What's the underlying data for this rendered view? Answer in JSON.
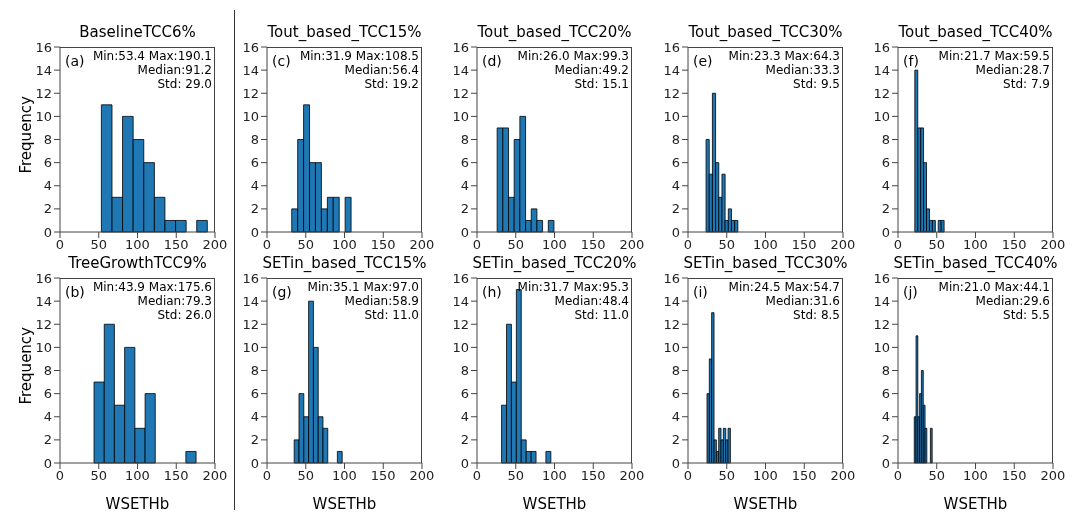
{
  "chart_data": [
    {
      "type": "histogram",
      "title": "BaselineTCC6%",
      "ylabel": "Frequency",
      "bins": [
        53.4,
        67.1,
        80.7,
        94.4,
        108.1,
        121.8,
        135.4,
        149.1,
        162.8,
        176.4,
        190.1
      ],
      "values": [
        11,
        3,
        10,
        8,
        6,
        3,
        1,
        1,
        0,
        1
      ],
      "color": "#1f77b4",
      "xlim": [
        0,
        200
      ],
      "xticks": [
        0,
        50,
        100,
        150,
        200
      ],
      "ylim": [
        0,
        16
      ],
      "yticks": [
        0,
        2,
        4,
        6,
        8,
        10,
        12,
        14,
        16
      ],
      "annotations": [
        "(a)",
        "Min:53.4 Max:190.1",
        "Median:91.2",
        "Std: 29.0"
      ]
    },
    {
      "type": "histogram",
      "title": "Tout_based_TCC15%",
      "bins": [
        31.9,
        39.6,
        47.2,
        54.9,
        62.5,
        70.2,
        77.9,
        85.5,
        93.2,
        100.8,
        108.5
      ],
      "values": [
        2,
        8,
        11,
        6,
        6,
        2,
        3,
        3,
        0,
        3
      ],
      "color": "#1f77b4",
      "xlim": [
        0,
        200
      ],
      "xticks": [
        0,
        50,
        100,
        150,
        200
      ],
      "ylim": [
        0,
        16
      ],
      "yticks": [
        0,
        2,
        4,
        6,
        8,
        10,
        12,
        14,
        16
      ],
      "annotations": [
        "(c)",
        "Min:31.9 Max:108.5",
        "Median:56.4",
        "Std: 19.2"
      ]
    },
    {
      "type": "histogram",
      "title": "Tout_based_TCC20%",
      "bins": [
        26.0,
        33.3,
        40.7,
        48.0,
        55.3,
        62.7,
        70.0,
        77.3,
        84.6,
        92.0,
        99.3
      ],
      "values": [
        9,
        9,
        3,
        8,
        10,
        1,
        2,
        1,
        0,
        1
      ],
      "color": "#1f77b4",
      "xlim": [
        0,
        200
      ],
      "xticks": [
        0,
        50,
        100,
        150,
        200
      ],
      "ylim": [
        0,
        16
      ],
      "yticks": [
        0,
        2,
        4,
        6,
        8,
        10,
        12,
        14,
        16
      ],
      "annotations": [
        "(d)",
        "Min:26.0 Max:99.3",
        "Median:49.2",
        "Std: 15.1"
      ]
    },
    {
      "type": "histogram",
      "title": "Tout_based_TCC30%",
      "bins": [
        23.3,
        27.4,
        31.5,
        35.6,
        39.7,
        43.8,
        47.9,
        52.0,
        56.1,
        60.2,
        64.3
      ],
      "values": [
        8,
        5,
        12,
        6,
        3,
        5,
        1,
        2,
        1,
        1
      ],
      "color": "#1f77b4",
      "xlim": [
        0,
        200
      ],
      "xticks": [
        0,
        50,
        100,
        150,
        200
      ],
      "ylim": [
        0,
        16
      ],
      "yticks": [
        0,
        2,
        4,
        6,
        8,
        10,
        12,
        14,
        16
      ],
      "annotations": [
        "(e)",
        "Min:23.3 Max:64.3",
        "Median:33.3",
        "Std: 9.5"
      ]
    },
    {
      "type": "histogram",
      "title": "Tout_based_TCC40%",
      "bins": [
        21.7,
        25.5,
        29.3,
        33.0,
        36.8,
        40.6,
        44.4,
        48.2,
        51.9,
        55.7,
        59.5
      ],
      "values": [
        14,
        9,
        9,
        6,
        2,
        1,
        1,
        0,
        1,
        1
      ],
      "color": "#1f77b4",
      "xlim": [
        0,
        200
      ],
      "xticks": [
        0,
        50,
        100,
        150,
        200
      ],
      "ylim": [
        0,
        16
      ],
      "yticks": [
        0,
        2,
        4,
        6,
        8,
        10,
        12,
        14,
        16
      ],
      "annotations": [
        "(f)",
        "Min:21.7 Max:59.5",
        "Median:28.7",
        "Std: 7.9"
      ]
    },
    {
      "type": "histogram",
      "title": "TreeGrowthTCC9%",
      "xlabel": "WSETHb",
      "ylabel": "Frequency",
      "bins": [
        43.9,
        57.1,
        70.2,
        83.4,
        96.6,
        109.8,
        122.9,
        136.1,
        149.3,
        162.4,
        175.6
      ],
      "values": [
        7,
        12,
        5,
        10,
        3,
        6,
        0,
        0,
        0,
        1
      ],
      "color": "#1f77b4",
      "xlim": [
        0,
        200
      ],
      "xticks": [
        0,
        50,
        100,
        150,
        200
      ],
      "ylim": [
        0,
        16
      ],
      "yticks": [
        0,
        2,
        4,
        6,
        8,
        10,
        12,
        14,
        16
      ],
      "annotations": [
        "(b)",
        "Min:43.9 Max:175.6",
        "Median:79.3",
        "Std: 26.0"
      ]
    },
    {
      "type": "histogram",
      "title": "SETin_based_TCC15%",
      "xlabel": "WSETHb",
      "bins": [
        35.1,
        41.3,
        47.5,
        53.7,
        59.9,
        66.1,
        72.2,
        78.4,
        84.6,
        90.8,
        97.0
      ],
      "values": [
        2,
        6,
        4,
        14,
        10,
        4,
        3,
        0,
        0,
        1
      ],
      "color": "#1f77b4",
      "xlim": [
        0,
        200
      ],
      "xticks": [
        0,
        50,
        100,
        150,
        200
      ],
      "ylim": [
        0,
        16
      ],
      "yticks": [
        0,
        2,
        4,
        6,
        8,
        10,
        12,
        14,
        16
      ],
      "annotations": [
        "(g)",
        "Min:35.1 Max:97.0",
        "Median:58.9",
        "Std: 11.0"
      ]
    },
    {
      "type": "histogram",
      "title": "SETin_based_TCC20%",
      "xlabel": "WSETHb",
      "bins": [
        31.7,
        38.1,
        44.4,
        50.8,
        57.1,
        63.5,
        69.9,
        76.2,
        82.6,
        88.9,
        95.3
      ],
      "values": [
        5,
        12,
        7,
        15,
        2,
        1,
        1,
        0,
        0,
        1
      ],
      "color": "#1f77b4",
      "xlim": [
        0,
        200
      ],
      "xticks": [
        0,
        50,
        100,
        150,
        200
      ],
      "ylim": [
        0,
        16
      ],
      "yticks": [
        0,
        2,
        4,
        6,
        8,
        10,
        12,
        14,
        16
      ],
      "annotations": [
        "(h)",
        "Min:31.7 Max:95.3",
        "Median:48.4",
        "Std: 11.0"
      ]
    },
    {
      "type": "histogram",
      "title": "SETin_based_TCC30%",
      "xlabel": "WSETHb",
      "bins": [
        24.5,
        27.5,
        30.5,
        33.6,
        36.6,
        39.6,
        42.6,
        45.6,
        48.7,
        51.7,
        54.7
      ],
      "values": [
        6,
        9,
        13,
        2,
        1,
        3,
        2,
        3,
        2,
        3
      ],
      "color": "#1f77b4",
      "xlim": [
        0,
        200
      ],
      "xticks": [
        0,
        50,
        100,
        150,
        200
      ],
      "ylim": [
        0,
        16
      ],
      "yticks": [
        0,
        2,
        4,
        6,
        8,
        10,
        12,
        14,
        16
      ],
      "annotations": [
        "(i)",
        "Min:24.5 Max:54.7",
        "Median:31.6",
        "Std: 8.5"
      ]
    },
    {
      "type": "histogram",
      "title": "SETin_based_TCC40%",
      "xlabel": "WSETHb",
      "bins": [
        21.0,
        23.3,
        25.6,
        27.9,
        30.2,
        32.6,
        34.9,
        37.2,
        39.5,
        41.8,
        44.1
      ],
      "values": [
        4,
        11,
        4,
        6,
        8,
        5,
        3,
        0,
        0,
        3
      ],
      "color": "#1f77b4",
      "xlim": [
        0,
        200
      ],
      "xticks": [
        0,
        50,
        100,
        150,
        200
      ],
      "ylim": [
        0,
        16
      ],
      "yticks": [
        0,
        2,
        4,
        6,
        8,
        10,
        12,
        14,
        16
      ],
      "annotations": [
        "(j)",
        "Min:21.0 Max:44.1",
        "Median:29.6",
        "Std: 5.5"
      ]
    }
  ]
}
